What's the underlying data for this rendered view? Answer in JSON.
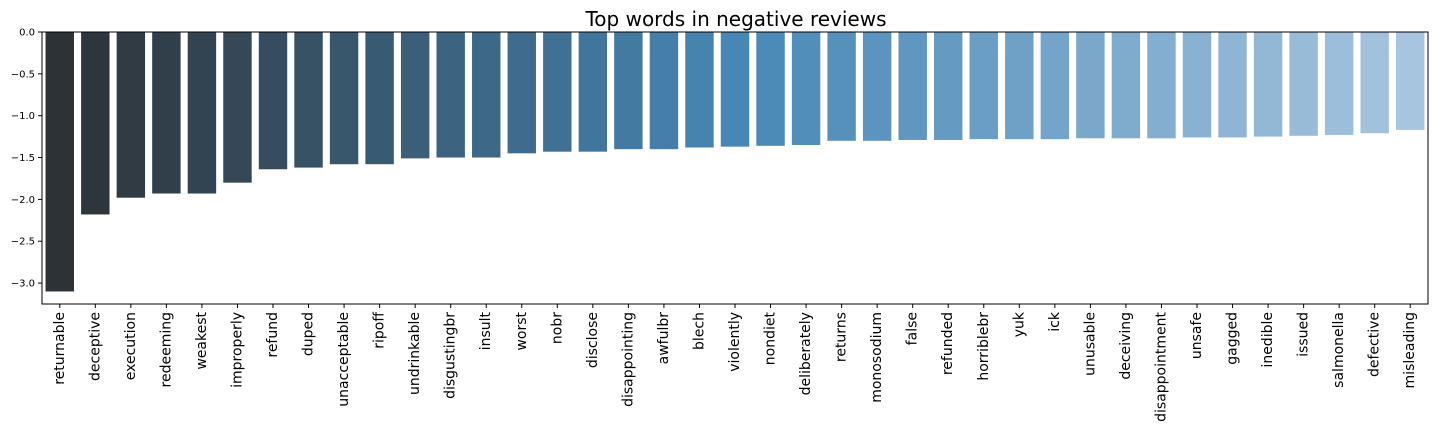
{
  "chart_data": {
    "type": "bar",
    "title": "Top words in negative reviews",
    "xlabel": "",
    "ylabel": "",
    "ylim": [
      -3.25,
      0.0
    ],
    "yticks": [
      0.0,
      -0.5,
      -1.0,
      -1.5,
      -2.0,
      -2.5,
      -3.0
    ],
    "ytick_labels": [
      "0.0",
      "−0.5",
      "−1.0",
      "−1.5",
      "−2.0",
      "−2.5",
      "−3.0"
    ],
    "grid": false,
    "palette": "Blues_d",
    "color_start": "#2d3236",
    "color_mid": "#4787b6",
    "color_end": "#a7c5de",
    "categories": [
      "returnable",
      "deceptive",
      "execution",
      "redeeming",
      "weakest",
      "improperly",
      "refund",
      "duped",
      "unacceptable",
      "ripoff",
      "undrinkable",
      "disgustingbr",
      "insult",
      "worst",
      "nobr",
      "disclose",
      "disappointing",
      "awfulbr",
      "blech",
      "violently",
      "nondiet",
      "deliberately",
      "returns",
      "monosodium",
      "false",
      "refunded",
      "horriblebr",
      "yuk",
      "ick",
      "unusable",
      "deceiving",
      "disappointment",
      "unsafe",
      "gagged",
      "inedible",
      "issued",
      "salmonella",
      "defective",
      "misleading"
    ],
    "values": [
      -3.1,
      -2.18,
      -1.98,
      -1.93,
      -1.93,
      -1.8,
      -1.64,
      -1.62,
      -1.58,
      -1.58,
      -1.51,
      -1.5,
      -1.5,
      -1.45,
      -1.43,
      -1.43,
      -1.4,
      -1.4,
      -1.38,
      -1.37,
      -1.36,
      -1.35,
      -1.3,
      -1.3,
      -1.29,
      -1.29,
      -1.28,
      -1.28,
      -1.28,
      -1.27,
      -1.27,
      -1.27,
      -1.26,
      -1.26,
      -1.25,
      -1.24,
      -1.23,
      -1.21,
      -1.17
    ]
  }
}
